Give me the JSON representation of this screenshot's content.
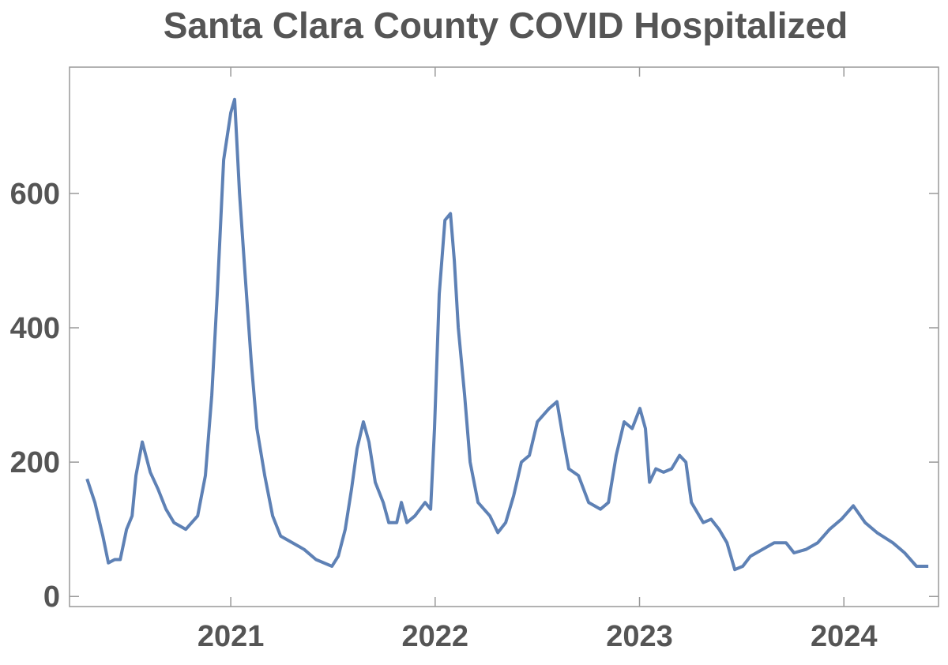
{
  "chart_data": {
    "type": "line",
    "title": "Santa Clara County COVID Hospitalized",
    "xlim": [
      2020.211,
      2024.463
    ],
    "ylim": [
      -15,
      788
    ],
    "xticks": [
      2021,
      2022,
      2023,
      2024
    ],
    "yticks": [
      0,
      200,
      400,
      600
    ],
    "grid": false,
    "series": [
      {
        "name": "Hospitalized",
        "color": "#5e81b5",
        "x": [
          2020.297,
          2020.335,
          2020.374,
          2020.401,
          2020.432,
          2020.459,
          2020.49,
          2020.517,
          2020.536,
          2020.567,
          2020.606,
          2020.644,
          2020.683,
          2020.722,
          2020.78,
          2020.838,
          2020.876,
          2020.907,
          2020.934,
          2020.965,
          2021.0,
          2021.019,
          2021.043,
          2021.07,
          2021.1,
          2021.128,
          2021.166,
          2021.205,
          2021.244,
          2021.302,
          2021.359,
          2021.417,
          2021.495,
          2021.526,
          2021.56,
          2021.591,
          2021.618,
          2021.649,
          2021.676,
          2021.707,
          2021.746,
          2021.773,
          2021.812,
          2021.835,
          2021.862,
          2021.901,
          2021.951,
          2021.978,
          2021.997,
          2022.02,
          2022.048,
          2022.075,
          2022.094,
          2022.113,
          2022.144,
          2022.171,
          2022.21,
          2022.268,
          2022.307,
          2022.345,
          2022.384,
          2022.422,
          2022.461,
          2022.5,
          2022.558,
          2022.596,
          2022.624,
          2022.654,
          2022.701,
          2022.751,
          2022.809,
          2022.848,
          2022.886,
          2022.925,
          2022.964,
          2023.002,
          2023.029,
          2023.049,
          2023.08,
          2023.118,
          2023.157,
          2023.196,
          2023.227,
          2023.254,
          2023.312,
          2023.35,
          2023.389,
          2023.428,
          2023.466,
          2023.505,
          2023.543,
          2023.601,
          2023.659,
          2023.717,
          2023.756,
          2023.814,
          2023.872,
          2023.93,
          2023.988,
          2024.046,
          2024.104,
          2024.162,
          2024.239,
          2024.297,
          2024.355,
          2024.413
        ],
        "values": [
          175,
          140,
          90,
          50,
          55,
          55,
          100,
          120,
          180,
          230,
          185,
          160,
          130,
          110,
          100,
          120,
          180,
          300,
          450,
          650,
          720,
          740,
          600,
          480,
          350,
          250,
          180,
          120,
          90,
          80,
          70,
          55,
          45,
          60,
          100,
          160,
          220,
          260,
          230,
          170,
          140,
          110,
          110,
          140,
          110,
          120,
          140,
          130,
          250,
          450,
          560,
          570,
          500,
          400,
          300,
          200,
          140,
          120,
          95,
          110,
          150,
          200,
          210,
          260,
          280,
          290,
          240,
          190,
          180,
          140,
          130,
          140,
          210,
          260,
          250,
          280,
          250,
          170,
          190,
          185,
          190,
          210,
          200,
          140,
          110,
          115,
          100,
          80,
          40,
          45,
          60,
          70,
          80,
          80,
          65,
          70,
          80,
          100,
          115,
          135,
          110,
          95,
          80,
          65,
          45,
          45
        ]
      }
    ]
  }
}
